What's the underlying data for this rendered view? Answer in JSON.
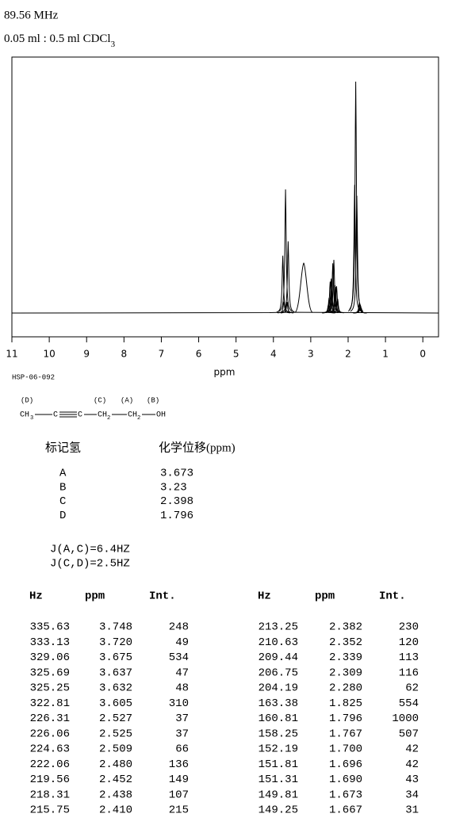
{
  "header": {
    "frequency": "89.56 MHz",
    "sample": "0.05 ml : 0.5 ml CDCl",
    "sample_subscript": "3"
  },
  "chart_data": {
    "type": "spectrum",
    "xlabel": "ppm",
    "code": "HSP-06-092",
    "xlim": [
      11,
      -0.42
    ],
    "xticks": [
      11,
      10,
      9,
      8,
      7,
      6,
      5,
      4,
      3,
      2,
      1,
      0
    ],
    "color": "#000000"
  },
  "structure": {
    "labels": [
      "(D)",
      "(C)",
      "(A)",
      "(B)"
    ],
    "parts": [
      "CH",
      "3",
      "C",
      "C",
      "CH",
      "2",
      "CH",
      "2",
      "OH"
    ]
  },
  "assignments": {
    "columns": [
      "标记氢",
      "化学位移(ppm)"
    ],
    "rows": [
      [
        "A",
        "3.673"
      ],
      [
        "B",
        "3.23"
      ],
      [
        "C",
        "2.398"
      ],
      [
        "D",
        "1.796"
      ]
    ]
  },
  "couplings": [
    "J(A,C)=6.4HZ",
    "J(C,D)=2.5HZ"
  ],
  "peaks": {
    "columns": [
      "Hz",
      "ppm",
      "Int."
    ],
    "rows": [
      [
        "335.63",
        "3.748",
        "248"
      ],
      [
        "333.13",
        "3.720",
        "49"
      ],
      [
        "329.06",
        "3.675",
        "534"
      ],
      [
        "325.69",
        "3.637",
        "47"
      ],
      [
        "325.25",
        "3.632",
        "48"
      ],
      [
        "322.81",
        "3.605",
        "310"
      ],
      [
        "226.31",
        "2.527",
        "37"
      ],
      [
        "226.06",
        "2.525",
        "37"
      ],
      [
        "224.63",
        "2.509",
        "66"
      ],
      [
        "222.06",
        "2.480",
        "136"
      ],
      [
        "219.56",
        "2.452",
        "149"
      ],
      [
        "218.31",
        "2.438",
        "107"
      ],
      [
        "215.75",
        "2.410",
        "215"
      ],
      [
        "213.25",
        "2.382",
        "230"
      ],
      [
        "210.63",
        "2.352",
        "120"
      ],
      [
        "209.44",
        "2.339",
        "113"
      ],
      [
        "206.75",
        "2.309",
        "116"
      ],
      [
        "204.19",
        "2.280",
        "62"
      ],
      [
        "163.38",
        "1.825",
        "554"
      ],
      [
        "160.81",
        "1.796",
        "1000"
      ],
      [
        "158.25",
        "1.767",
        "507"
      ],
      [
        "152.19",
        "1.700",
        "42"
      ],
      [
        "151.81",
        "1.696",
        "42"
      ],
      [
        "151.31",
        "1.690",
        "43"
      ],
      [
        "149.81",
        "1.673",
        "34"
      ],
      [
        "149.25",
        "1.667",
        "31"
      ]
    ]
  }
}
